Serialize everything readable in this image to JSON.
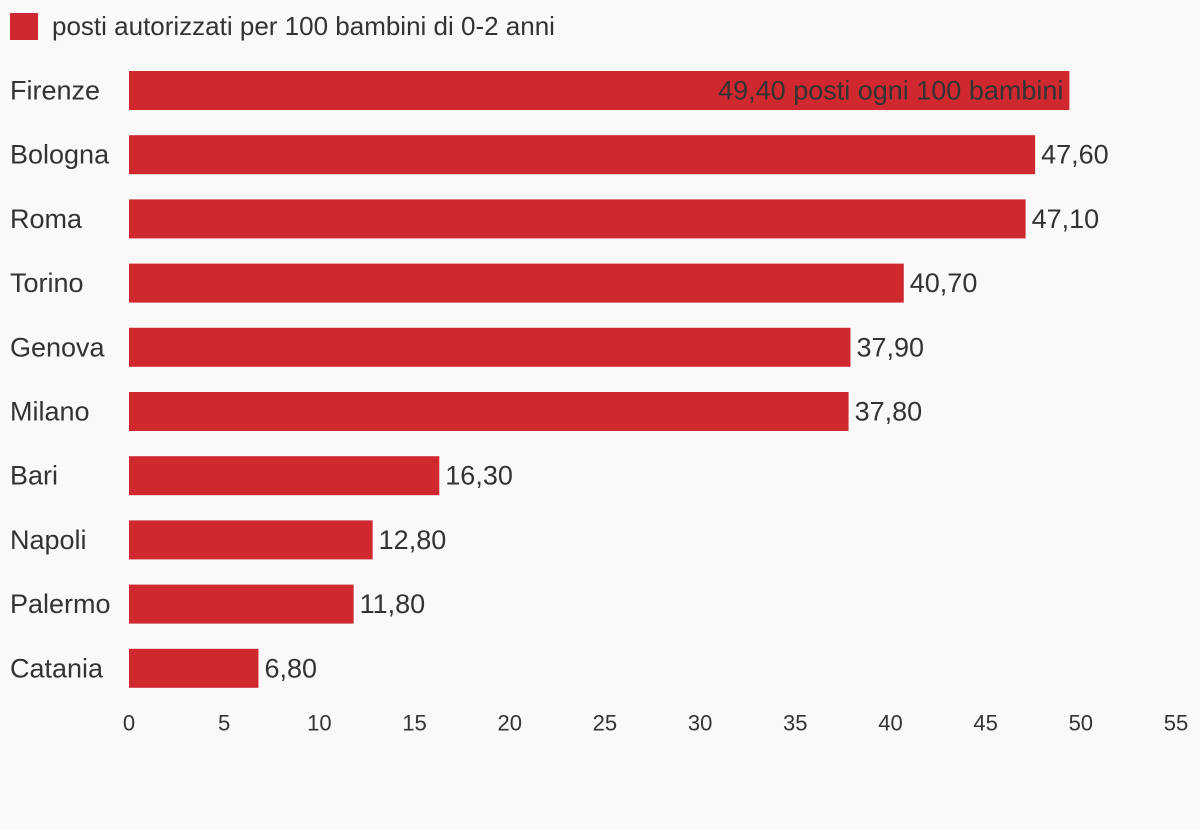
{
  "chart_data": {
    "type": "bar",
    "orientation": "horizontal",
    "categories": [
      "Firenze",
      "Bologna",
      "Roma",
      "Torino",
      "Genova",
      "Milano",
      "Bari",
      "Napoli",
      "Palermo",
      "Catania"
    ],
    "series": [
      {
        "name": "posti autorizzati per 100 bambini di 0-2 anni",
        "color": "#d0282f",
        "values": [
          49.4,
          47.6,
          47.1,
          40.7,
          37.9,
          37.8,
          16.3,
          12.8,
          11.8,
          6.8
        ]
      }
    ],
    "value_labels": [
      "49,40 posti ogni 100 bambini",
      "47,60",
      "47,10",
      "40,70",
      "37,90",
      "37,80",
      "16,30",
      "12,80",
      "11,80",
      "6,80"
    ],
    "xlim": [
      0,
      55
    ],
    "xticks": [
      "0",
      "5",
      "10",
      "15",
      "20",
      "25",
      "30",
      "35",
      "40",
      "45",
      "50",
      "55"
    ],
    "grid": false,
    "legend_position": "top-left"
  }
}
